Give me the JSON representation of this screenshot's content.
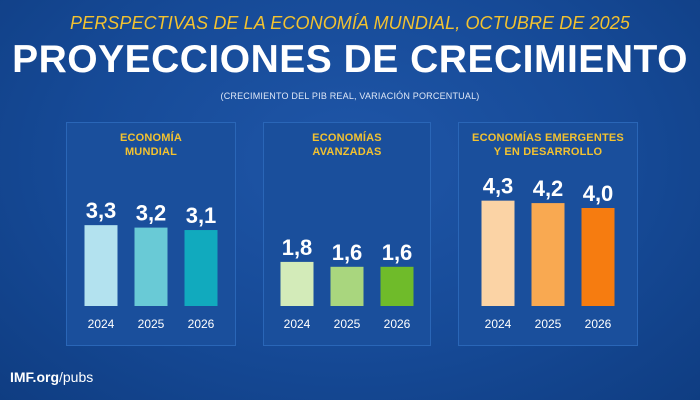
{
  "header": {
    "subtitle": "PERSPECTIVAS DE LA ECONOMÍA MUNDIAL, OCTUBRE DE 2025",
    "title": "PROYECCIONES DE CRECIMIENTO",
    "note": "(CRECIMIENTO DEL PIB REAL, VARIACIÓN PORCENTUAL)"
  },
  "footer": {
    "site_bold": "IMF.org",
    "site_path": "/pubs"
  },
  "chart_data": [
    {
      "type": "bar",
      "title": [
        "ECONOMÍA",
        "MUNDIAL"
      ],
      "categories": [
        "2024",
        "2025",
        "2026"
      ],
      "values": [
        3.3,
        3.2,
        3.1
      ],
      "value_labels": [
        "3,3",
        "3,2",
        "3,1"
      ],
      "colors": [
        "#b3e2ef",
        "#69cad6",
        "#11aabe"
      ]
    },
    {
      "type": "bar",
      "title": [
        "ECONOMÍAS",
        "AVANZADAS"
      ],
      "categories": [
        "2024",
        "2025",
        "2026"
      ],
      "values": [
        1.8,
        1.6,
        1.6
      ],
      "value_labels": [
        "1,8",
        "1,6",
        "1,6"
      ],
      "colors": [
        "#d3ebb9",
        "#a9d67e",
        "#6fbb2a"
      ]
    },
    {
      "type": "bar",
      "title": [
        "ECONOMÍAS EMERGENTES",
        "Y EN DESARROLLO"
      ],
      "categories": [
        "2024",
        "2025",
        "2026"
      ],
      "values": [
        4.3,
        4.2,
        4.0
      ],
      "value_labels": [
        "4,3",
        "4,2",
        "4,0"
      ],
      "colors": [
        "#fbd3a5",
        "#f9a951",
        "#f67c10"
      ]
    }
  ]
}
